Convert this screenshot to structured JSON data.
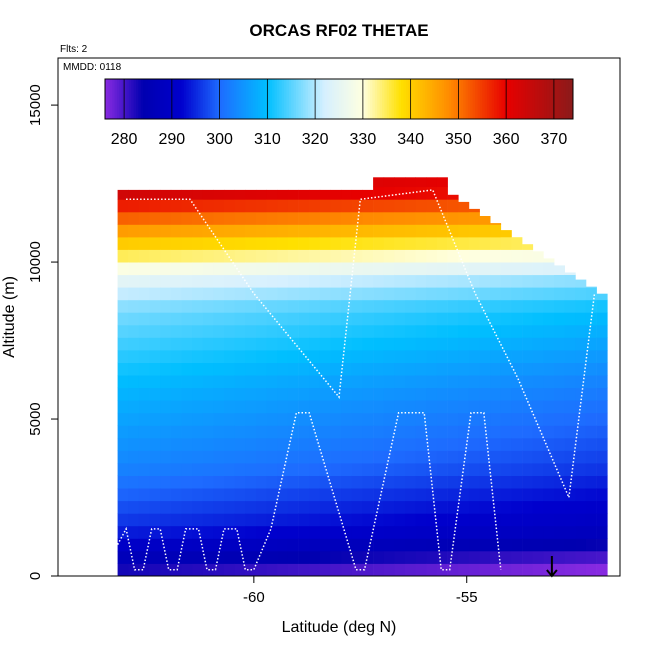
{
  "chart_data": {
    "type": "heatmap",
    "title": "ORCAS RF02 THETAE",
    "annotations": {
      "flights": "Flts: 2",
      "date": "MMDD: 0118"
    },
    "xlabel": "Latitude (deg N)",
    "ylabel": "Altitude (m)",
    "xlim": [
      -64.6,
      -51.4
    ],
    "ylim": [
      0,
      16500
    ],
    "x_ticks": [
      -60,
      -55
    ],
    "x_tick_labels": [
      "-60",
      "-55"
    ],
    "y_ticks": [
      0,
      5000,
      10000,
      15000
    ],
    "y_tick_labels": [
      "0",
      "5000",
      "10000",
      "15000"
    ],
    "colorbar": {
      "ticks": [
        280,
        290,
        300,
        310,
        320,
        330,
        340,
        350,
        360,
        370
      ],
      "tick_labels": [
        "280",
        "290",
        "300",
        "310",
        "320",
        "330",
        "340",
        "350",
        "360",
        "370"
      ],
      "range": [
        276,
        374
      ],
      "placement": "top inside plot"
    },
    "colormap": [
      [
        276,
        "#8a2be2"
      ],
      [
        284,
        "#0000b0"
      ],
      [
        292,
        "#0000cd"
      ],
      [
        300,
        "#1e6bff"
      ],
      [
        310,
        "#00bfff"
      ],
      [
        322,
        "#d6f0ff"
      ],
      [
        330,
        "#ffffe0"
      ],
      [
        338,
        "#ffe000"
      ],
      [
        348,
        "#ff8c00"
      ],
      [
        360,
        "#e80000"
      ],
      [
        374,
        "#8b1a1a"
      ]
    ],
    "field_description": {
      "x_range": [
        -63.2,
        -51.8
      ],
      "layers_theta_e_by_altitude_m": [
        [
          0,
          278
        ],
        [
          1500,
          292
        ],
        [
          3500,
          300
        ],
        [
          6000,
          306
        ],
        [
          8500,
          314
        ],
        [
          9500,
          322
        ],
        [
          10500,
          336
        ],
        [
          11500,
          350
        ],
        [
          12300,
          362
        ]
      ]
    },
    "flight_track": {
      "color": "#ffffff",
      "points": [
        [
          -63.2,
          1000
        ],
        [
          -63.0,
          1500
        ],
        [
          -62.8,
          200
        ],
        [
          -62.6,
          200
        ],
        [
          -62.4,
          1500
        ],
        [
          -62.2,
          1500
        ],
        [
          -62.0,
          200
        ],
        [
          -61.8,
          200
        ],
        [
          -61.6,
          1500
        ],
        [
          -61.3,
          1500
        ],
        [
          -61.1,
          200
        ],
        [
          -60.9,
          200
        ],
        [
          -60.7,
          1500
        ],
        [
          -60.4,
          1500
        ],
        [
          -60.2,
          200
        ],
        [
          -60.0,
          200
        ],
        [
          -59.6,
          1500
        ],
        [
          -59.0,
          5200
        ],
        [
          -58.7,
          5200
        ],
        [
          -57.6,
          200
        ],
        [
          -57.4,
          200
        ],
        [
          -56.6,
          5200
        ],
        [
          -56.0,
          5200
        ],
        [
          -55.6,
          200
        ],
        [
          -55.4,
          200
        ],
        [
          -54.9,
          5200
        ],
        [
          -54.6,
          5200
        ],
        [
          -54.2,
          200
        ]
      ],
      "upper_leg": [
        [
          -63.0,
          12000
        ],
        [
          -61.5,
          12000
        ],
        [
          -60.0,
          9000
        ],
        [
          -58.0,
          5700
        ],
        [
          -57.5,
          12000
        ],
        [
          -55.8,
          12300
        ],
        [
          -54.8,
          9000
        ],
        [
          -53.8,
          6300
        ],
        [
          -52.6,
          2500
        ],
        [
          -52.0,
          9000
        ]
      ],
      "end_marker": [
        -53.0,
        0
      ]
    }
  }
}
